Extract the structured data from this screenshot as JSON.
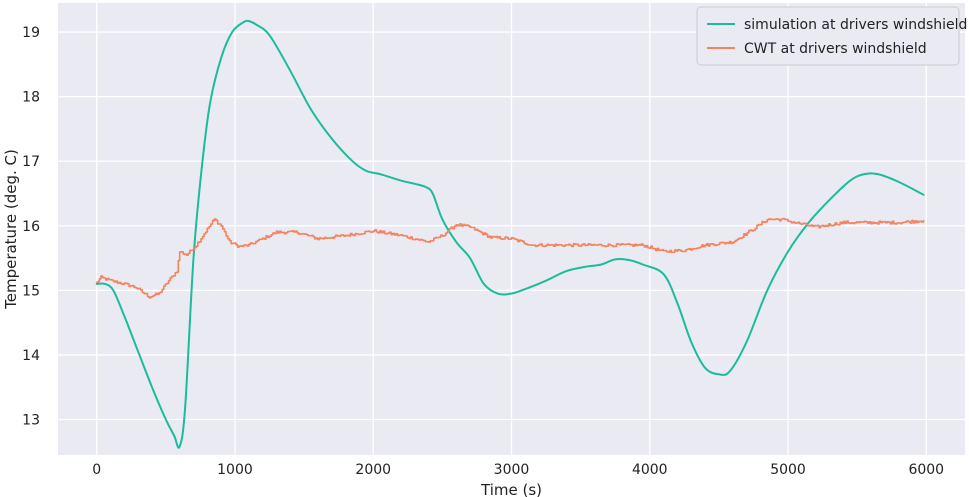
{
  "chart_data": {
    "type": "line",
    "title": "",
    "xlabel": "Time (s)",
    "ylabel": "Temperature (deg. C)",
    "xlim": [
      -280,
      6280
    ],
    "ylim": [
      12.45,
      19.45
    ],
    "x_ticks": [
      0,
      1000,
      2000,
      3000,
      4000,
      5000,
      6000
    ],
    "y_ticks": [
      13,
      14,
      15,
      16,
      17,
      18,
      19
    ],
    "grid": true,
    "legend_position": "top-right",
    "background_color": "#eaeaf2",
    "grid_color": "#ffffff",
    "series": [
      {
        "name": "simulation at drivers windshield",
        "color": "#1abc9c",
        "style": "smooth",
        "points": [
          [
            0,
            15.1
          ],
          [
            60,
            15.1
          ],
          [
            120,
            15.0
          ],
          [
            200,
            14.6
          ],
          [
            300,
            14.05
          ],
          [
            400,
            13.5
          ],
          [
            500,
            13.0
          ],
          [
            560,
            12.75
          ],
          [
            600,
            12.58
          ],
          [
            640,
            13.2
          ],
          [
            700,
            15.5
          ],
          [
            760,
            16.9
          ],
          [
            820,
            17.9
          ],
          [
            900,
            18.6
          ],
          [
            980,
            19.0
          ],
          [
            1060,
            19.15
          ],
          [
            1100,
            19.17
          ],
          [
            1150,
            19.12
          ],
          [
            1250,
            18.95
          ],
          [
            1400,
            18.4
          ],
          [
            1550,
            17.8
          ],
          [
            1700,
            17.35
          ],
          [
            1850,
            17.0
          ],
          [
            1950,
            16.85
          ],
          [
            2050,
            16.8
          ],
          [
            2200,
            16.7
          ],
          [
            2300,
            16.65
          ],
          [
            2380,
            16.6
          ],
          [
            2430,
            16.5
          ],
          [
            2500,
            16.1
          ],
          [
            2600,
            15.75
          ],
          [
            2700,
            15.5
          ],
          [
            2800,
            15.1
          ],
          [
            2900,
            14.95
          ],
          [
            3000,
            14.95
          ],
          [
            3100,
            15.02
          ],
          [
            3250,
            15.15
          ],
          [
            3400,
            15.3
          ],
          [
            3550,
            15.37
          ],
          [
            3650,
            15.4
          ],
          [
            3750,
            15.48
          ],
          [
            3850,
            15.47
          ],
          [
            3950,
            15.4
          ],
          [
            4100,
            15.25
          ],
          [
            4200,
            14.8
          ],
          [
            4300,
            14.2
          ],
          [
            4400,
            13.8
          ],
          [
            4500,
            13.7
          ],
          [
            4580,
            13.75
          ],
          [
            4700,
            14.2
          ],
          [
            4850,
            15.0
          ],
          [
            5000,
            15.6
          ],
          [
            5150,
            16.05
          ],
          [
            5300,
            16.4
          ],
          [
            5450,
            16.7
          ],
          [
            5550,
            16.8
          ],
          [
            5650,
            16.8
          ],
          [
            5800,
            16.68
          ],
          [
            5980,
            16.48
          ]
        ]
      },
      {
        "name": "CWT at drivers windshield",
        "color": "#f4845f",
        "style": "noisy",
        "points": [
          [
            0,
            15.12
          ],
          [
            30,
            15.2
          ],
          [
            100,
            15.15
          ],
          [
            200,
            15.1
          ],
          [
            280,
            15.05
          ],
          [
            330,
            14.97
          ],
          [
            380,
            14.9
          ],
          [
            450,
            14.95
          ],
          [
            520,
            15.15
          ],
          [
            580,
            15.3
          ],
          [
            600,
            15.6
          ],
          [
            650,
            15.55
          ],
          [
            720,
            15.7
          ],
          [
            800,
            15.95
          ],
          [
            850,
            16.1
          ],
          [
            900,
            16.0
          ],
          [
            960,
            15.75
          ],
          [
            1030,
            15.68
          ],
          [
            1100,
            15.7
          ],
          [
            1200,
            15.8
          ],
          [
            1300,
            15.9
          ],
          [
            1450,
            15.9
          ],
          [
            1600,
            15.8
          ],
          [
            1800,
            15.85
          ],
          [
            2000,
            15.92
          ],
          [
            2200,
            15.85
          ],
          [
            2400,
            15.75
          ],
          [
            2500,
            15.85
          ],
          [
            2600,
            16.02
          ],
          [
            2700,
            15.98
          ],
          [
            2850,
            15.82
          ],
          [
            3000,
            15.8
          ],
          [
            3150,
            15.7
          ],
          [
            3400,
            15.7
          ],
          [
            3700,
            15.7
          ],
          [
            3950,
            15.7
          ],
          [
            4100,
            15.6
          ],
          [
            4250,
            15.62
          ],
          [
            4400,
            15.7
          ],
          [
            4600,
            15.75
          ],
          [
            4750,
            15.95
          ],
          [
            4850,
            16.1
          ],
          [
            4950,
            16.1
          ],
          [
            5050,
            16.05
          ],
          [
            5200,
            15.98
          ],
          [
            5400,
            16.05
          ],
          [
            5600,
            16.05
          ],
          [
            5800,
            16.05
          ],
          [
            5980,
            16.08
          ]
        ]
      }
    ]
  }
}
